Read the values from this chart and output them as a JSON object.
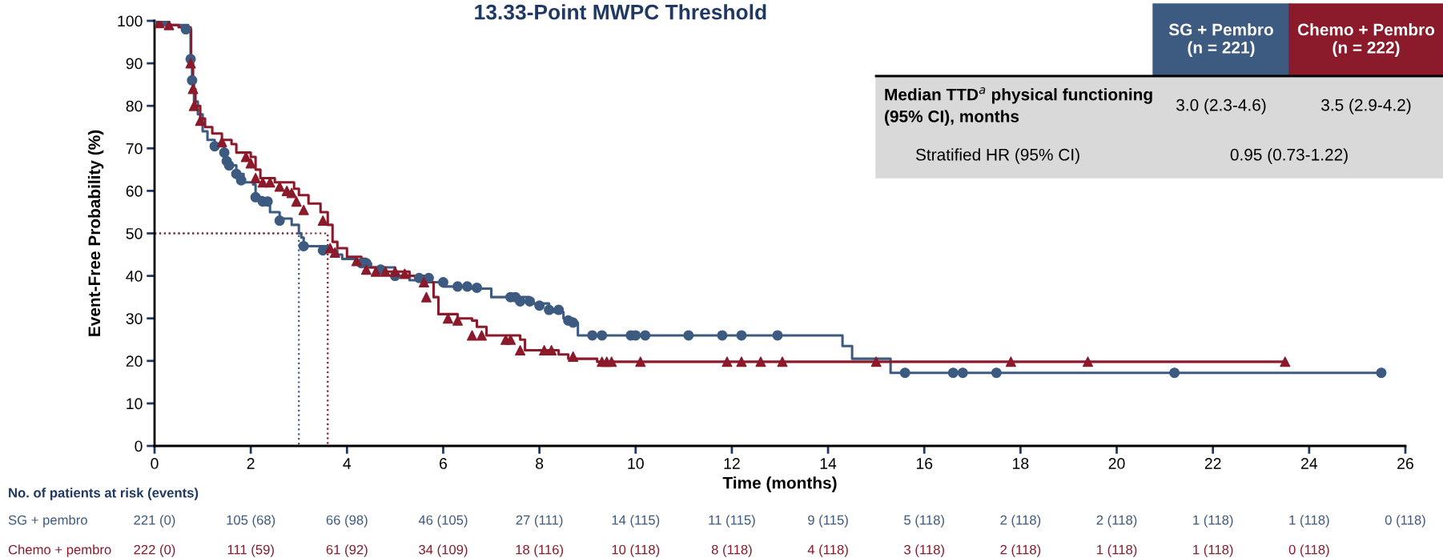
{
  "chart_data": {
    "type": "step",
    "title": "13.33-Point MWPC Threshold",
    "xlabel": "Time (months)",
    "ylabel": "Event-Free Probability (%)",
    "xlim": [
      0,
      26
    ],
    "xticks": [
      0,
      2,
      4,
      6,
      8,
      10,
      12,
      14,
      16,
      18,
      20,
      22,
      24,
      26
    ],
    "ylim": [
      0,
      100
    ],
    "yticks": [
      0,
      10,
      20,
      30,
      40,
      50,
      60,
      70,
      80,
      90,
      100
    ],
    "grid": false,
    "legend": false,
    "series": [
      {
        "name": "SG + pembro",
        "color": "#3d5a80",
        "marker": "none",
        "x": [
          0,
          0.3,
          0.7,
          0.75,
          0.78,
          0.82,
          0.9,
          1.0,
          1.1,
          1.25,
          1.45,
          1.5,
          1.7,
          1.85,
          2.05,
          2.1,
          2.25,
          2.4,
          2.6,
          2.85,
          3.0,
          3.05,
          3.1,
          3.6,
          3.8,
          3.9,
          4.2,
          4.5,
          5.0,
          5.3,
          5.6,
          6.0,
          6.5,
          7.0,
          7.8,
          8.2,
          8.5,
          8.7,
          8.8,
          14.3,
          14.5,
          15.3,
          25.5
        ],
        "values": [
          100,
          99,
          98,
          91,
          86,
          81,
          78,
          74,
          72,
          70.5,
          68,
          66,
          64,
          62,
          61.5,
          58.5,
          57.5,
          55,
          53.5,
          52,
          50,
          49,
          47,
          46,
          45,
          44,
          43,
          42,
          40,
          39,
          38.5,
          37.5,
          37,
          35,
          33.5,
          31.5,
          30,
          29,
          26,
          23.5,
          20.5,
          17.2,
          17.2
        ]
      },
      {
        "name": "Chemo + pembro",
        "color": "#8b1a2b",
        "marker": "none",
        "x": [
          0,
          0.2,
          0.5,
          0.75,
          0.76,
          0.8,
          0.85,
          0.95,
          1.05,
          1.2,
          1.4,
          1.6,
          1.7,
          2.0,
          2.1,
          2.2,
          2.5,
          2.9,
          3.0,
          3.2,
          3.45,
          3.6,
          3.7,
          3.8,
          4.0,
          4.3,
          4.4,
          4.6,
          5.3,
          5.6,
          5.8,
          5.9,
          6.3,
          6.6,
          6.7,
          6.9,
          7.6,
          7.7,
          8.4,
          8.6,
          9.2,
          23.5
        ],
        "values": [
          100,
          99,
          98.5,
          98,
          90,
          84,
          80,
          77,
          75,
          73.5,
          72,
          71,
          69,
          68,
          65,
          63,
          62,
          60.5,
          59,
          57,
          55,
          52,
          48,
          46.5,
          44.5,
          44,
          42,
          41,
          40,
          38.5,
          35,
          31,
          30,
          29.5,
          28,
          26,
          25,
          22.5,
          21.5,
          20.5,
          19.8,
          19.8
        ]
      },
      {
        "type": "scatter",
        "color": "#3d5a80",
        "marker": "circle",
        "x": [
          0.05,
          0.2,
          0.65,
          0.75,
          0.78,
          1.25,
          1.45,
          1.5,
          1.55,
          1.7,
          1.8,
          2.1,
          2.25,
          2.35,
          2.6,
          3.1,
          3.5,
          4.3,
          4.4,
          4.7,
          5.0,
          5.5,
          5.7,
          6.0,
          6.3,
          6.5,
          6.7,
          7.4,
          7.5,
          7.6,
          7.8,
          8.0,
          8.2,
          8.4,
          8.6,
          8.7,
          9.1,
          9.3,
          9.9,
          10.0,
          10.2,
          11.1,
          11.8,
          12.2,
          12.95,
          15.6,
          16.6,
          16.8,
          17.5,
          21.2,
          25.5
        ],
        "values": [
          100,
          100,
          98,
          91,
          86,
          70.5,
          69,
          67,
          66,
          64,
          62.5,
          58.5,
          57.5,
          57.5,
          53,
          47,
          46,
          43,
          43,
          41.5,
          40,
          39.5,
          39.5,
          38.5,
          37.5,
          37.5,
          37.2,
          35,
          35,
          34,
          34,
          33,
          32,
          32,
          29.5,
          29,
          26,
          26,
          26,
          26,
          26,
          26,
          26,
          26,
          26,
          17.2,
          17.2,
          17.2,
          17.2,
          17.2,
          17.2
        ]
      },
      {
        "type": "scatter",
        "color": "#8b1a2b",
        "marker": "triangle",
        "x": [
          0.1,
          0.3,
          0.75,
          0.8,
          0.82,
          0.95,
          1.4,
          1.9,
          2.0,
          2.1,
          2.25,
          2.4,
          2.6,
          2.75,
          2.85,
          2.95,
          3.1,
          3.5,
          3.65,
          3.75,
          4.2,
          4.4,
          4.6,
          4.8,
          5.0,
          5.2,
          5.6,
          5.65,
          6.1,
          6.3,
          6.6,
          6.8,
          7.3,
          7.4,
          7.6,
          8.1,
          8.25,
          8.7,
          9.3,
          9.4,
          9.5,
          10.1,
          11.9,
          12.2,
          12.6,
          13.05,
          15.0,
          17.8,
          19.4,
          23.5
        ],
        "values": [
          99.5,
          99,
          90,
          84,
          80,
          76.5,
          71.5,
          68,
          66.5,
          63,
          62,
          62,
          61,
          60,
          59.5,
          57.5,
          55.5,
          53,
          46.5,
          45.5,
          43.5,
          41.5,
          41,
          41,
          41,
          40.5,
          38.5,
          35,
          30,
          29.5,
          26,
          26,
          25,
          25,
          22.5,
          22.5,
          22.5,
          21,
          19.8,
          19.8,
          19.8,
          19.8,
          19.8,
          19.8,
          19.8,
          19.8,
          19.8,
          19.8,
          19.8,
          19.8
        ]
      },
      {
        "type": "line",
        "color": "#3d5a80",
        "line_style": "dotted",
        "x": [
          0,
          3.0,
          3.0
        ],
        "values": [
          50,
          50,
          0
        ]
      },
      {
        "type": "line",
        "color": "#8b1a2b",
        "line_style": "dotted",
        "x": [
          0,
          3.6,
          3.6
        ],
        "values": [
          50,
          50,
          0
        ]
      }
    ],
    "annotations": [
      "SG + Pembro\n(n = 221)",
      "Chemo + Pembro\n(n = 222)",
      "Median TTD$^{a}$ physical functioning\n(95% CI), months",
      "3.0 (2.3-4.6)",
      "3.5 (2.9-4.2)",
      "Stratified HR (95% CI)",
      "0.95 (0.73-1.22)",
      "No. of patients at risk (events)",
      "221 (0)",
      "105 (68)",
      "66 (98)",
      "46 (105)",
      "27 (111)",
      "14 (115)",
      "11 (115)",
      "9 (115)",
      "5 (118)",
      "2 (118)",
      "2 (118)",
      "1 (118)",
      "1 (118)",
      "0 (118)",
      "222 (0)",
      "111 (59)",
      "61 (92)",
      "34 (109)",
      "18 (116)",
      "10 (118)",
      "8 (118)",
      "4 (118)",
      "3 (118)",
      "2 (118)",
      "1 (118)",
      "1 (118)",
      "0 (118)"
    ]
  }
}
